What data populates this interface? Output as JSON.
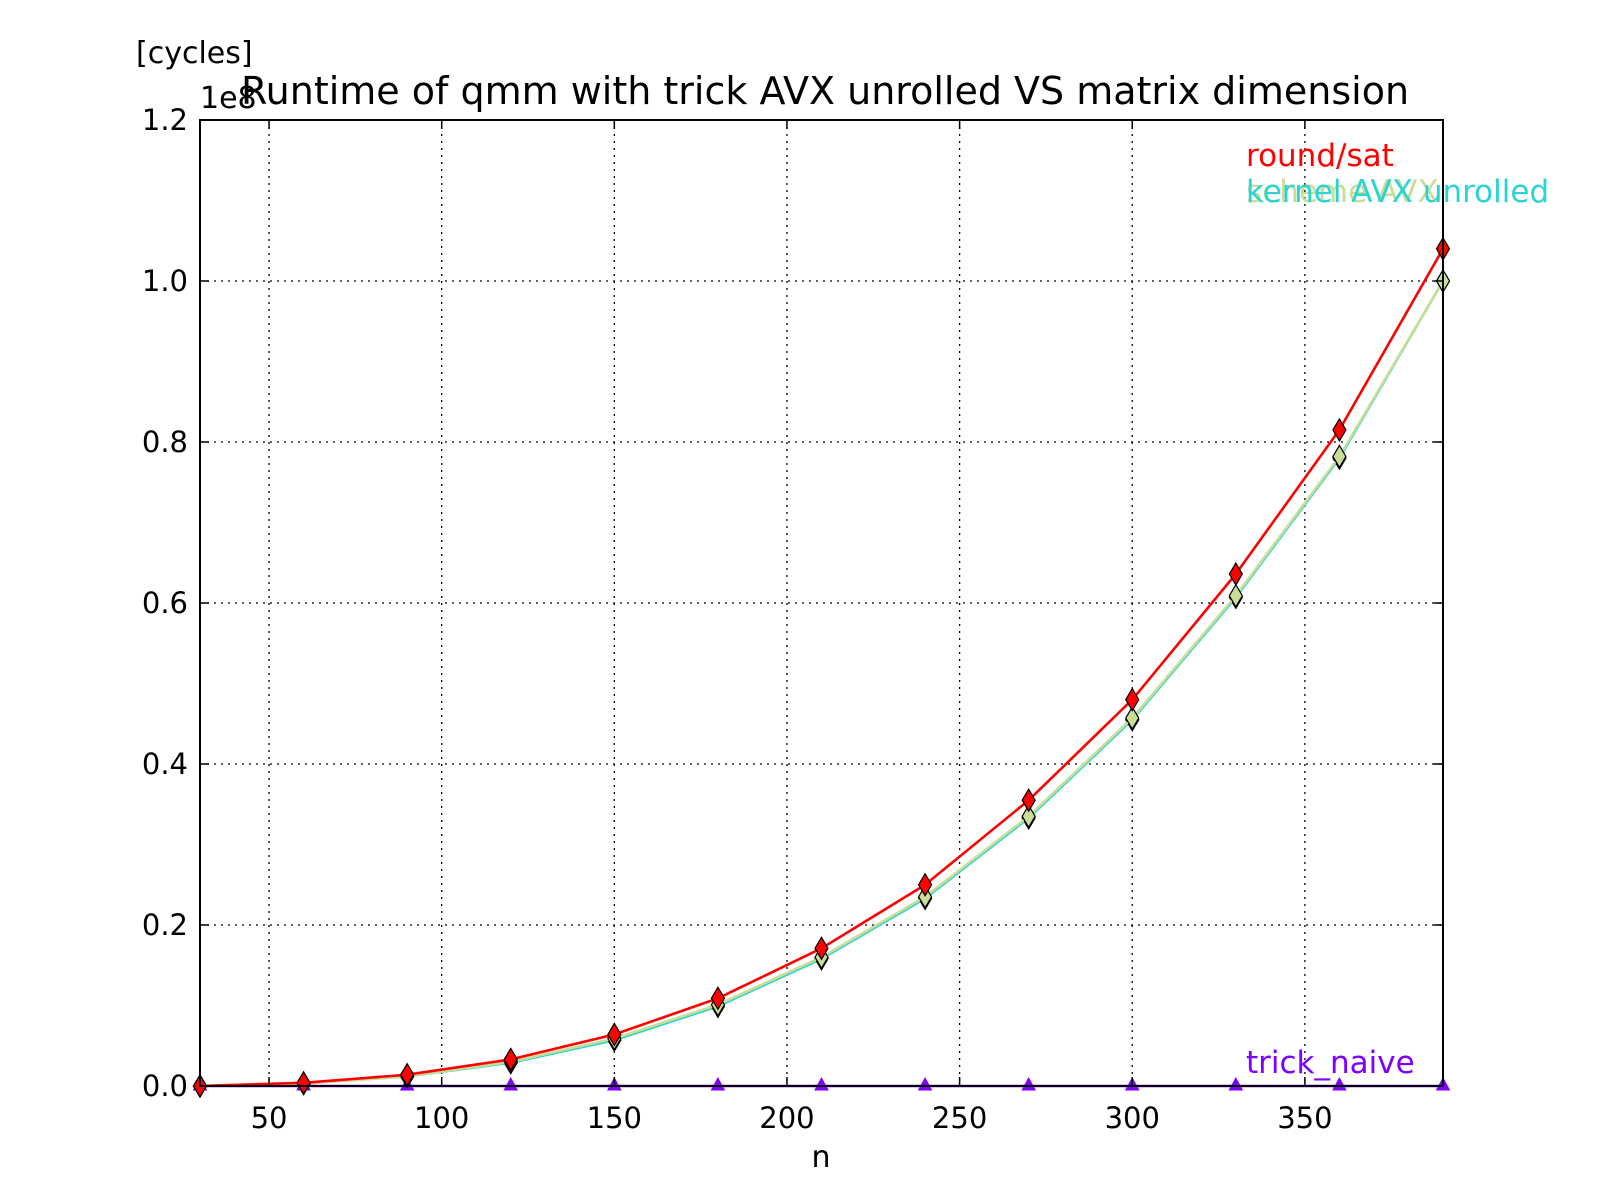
{
  "chart_data": {
    "type": "line",
    "title": "Runtime of qmm with trick AVX unrolled VS matrix dimension",
    "xlabel": "n",
    "ylabel": "[cycles]",
    "y_multiplier": "1e8",
    "xlim": [
      30,
      390
    ],
    "ylim": [
      0,
      1.2
    ],
    "xticks": [
      "50",
      "100",
      "150",
      "200",
      "250",
      "300",
      "350"
    ],
    "yticks": [
      "0.0",
      "0.2",
      "0.4",
      "0.6",
      "0.8",
      "1.0",
      "1.2"
    ],
    "grid": true,
    "legend": "inline labels at top-right and bottom-right",
    "x": [
      30,
      60,
      90,
      120,
      150,
      180,
      210,
      240,
      270,
      300,
      330,
      360,
      390
    ],
    "series": [
      {
        "name": "trick_naive",
        "color": "#7f00ff",
        "marker": "triangle",
        "values": [
          0.0,
          0.0,
          0.0,
          0.0,
          0.0,
          0.0,
          0.0,
          0.0,
          0.0,
          0.0,
          0.0,
          0.0,
          0.0
        ]
      },
      {
        "name": "kernel AVX unrolled",
        "color": "#2ad4d4",
        "marker": "diamond",
        "values": [
          0.0,
          0.003,
          0.012,
          0.029,
          0.057,
          0.099,
          0.158,
          0.233,
          0.333,
          0.455,
          0.607,
          0.78,
          1.0
        ]
      },
      {
        "name": "scheme AVX",
        "color": "#c8de96",
        "marker": "diamond",
        "values": [
          0.0,
          0.003,
          0.012,
          0.03,
          0.059,
          0.101,
          0.16,
          0.235,
          0.335,
          0.457,
          0.609,
          0.782,
          1.0
        ]
      },
      {
        "name": "round/sat",
        "color": "#ff0000",
        "marker": "diamond",
        "values": [
          0.0,
          0.004,
          0.014,
          0.033,
          0.064,
          0.109,
          0.171,
          0.25,
          0.355,
          0.48,
          0.636,
          0.815,
          1.04
        ]
      }
    ]
  }
}
